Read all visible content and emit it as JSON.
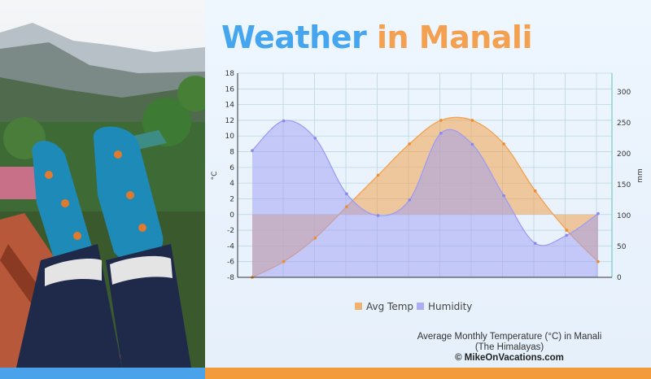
{
  "title": {
    "part1": "Weather",
    "part2": "in Manali"
  },
  "caption": {
    "line1": "Average Monthly Temperature (°C) in Manali",
    "line2": "(The Himalayas)",
    "line3": "© MikeOnVacations.com"
  },
  "colors": {
    "temp": "#f3a24e",
    "humidity": "#9d9df3",
    "title_blue": "#45a6ef",
    "title_orange": "#f3a050"
  },
  "chart_data": {
    "type": "area",
    "x": [
      1,
      2,
      3,
      4,
      5,
      6,
      7,
      8,
      9,
      10,
      11,
      12
    ],
    "series": [
      {
        "name": "Avg Temp",
        "axis": "left",
        "values": [
          -8,
          -6,
          -3,
          1,
          5,
          9,
          12,
          12,
          9,
          3,
          -2,
          -6
        ]
      },
      {
        "name": "Humidity",
        "axis": "right",
        "values": [
          205,
          253,
          225,
          135,
          100,
          125,
          233,
          215,
          132,
          55,
          68,
          103
        ]
      }
    ],
    "yleft": {
      "label": "°C",
      "ylim": [
        -8,
        18
      ],
      "ticks": [
        -8,
        -6,
        -4,
        -2,
        0,
        2,
        4,
        6,
        8,
        10,
        12,
        14,
        16,
        18
      ]
    },
    "yright": {
      "label": "mm",
      "ylim": [
        0,
        330
      ],
      "ticks": [
        0,
        50,
        100,
        150,
        200,
        250,
        300
      ]
    },
    "grid": true,
    "legend": "bottom"
  }
}
